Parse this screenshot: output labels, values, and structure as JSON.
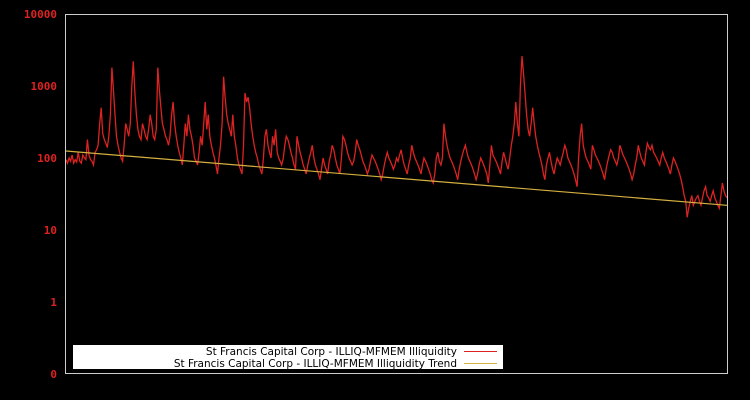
{
  "chart_data": {
    "type": "line",
    "title": "",
    "xlabel": "",
    "ylabel": "",
    "yscale": "log",
    "ylim": [
      0,
      10000
    ],
    "y_ticks": [
      "10000",
      "1000",
      "100",
      "10",
      "1",
      "0"
    ],
    "x_ticks": [],
    "grid": false,
    "legend_position": "lower-left",
    "colors": {
      "background": "#000000",
      "frame": "#cccccc",
      "tick_label": "#dd2222",
      "series": "#dd2222",
      "trend": "#d4b040"
    },
    "series": [
      {
        "name": "St Francis Capital Corp - ILLIQ-MFMEM Illiquidity",
        "color": "#dd2222",
        "values": [
          95,
          85,
          100,
          90,
          110,
          85,
          95,
          88,
          120,
          90,
          85,
          110,
          100,
          95,
          180,
          110,
          95,
          90,
          80,
          120,
          130,
          150,
          300,
          500,
          220,
          180,
          160,
          140,
          200,
          400,
          1800,
          900,
          400,
          200,
          150,
          120,
          100,
          90,
          150,
          300,
          250,
          200,
          300,
          1000,
          2200,
          800,
          400,
          250,
          200,
          180,
          300,
          250,
          200,
          180,
          250,
          400,
          300,
          200,
          180,
          250,
          1800,
          900,
          500,
          300,
          250,
          200,
          180,
          150,
          200,
          400,
          600,
          300,
          200,
          150,
          120,
          100,
          80,
          150,
          300,
          200,
          400,
          250,
          200,
          150,
          100,
          90,
          80,
          120,
          200,
          150,
          300,
          600,
          250,
          400,
          200,
          150,
          120,
          100,
          80,
          60,
          100,
          150,
          300,
          1350,
          700,
          400,
          300,
          250,
          200,
          400,
          200,
          150,
          100,
          80,
          70,
          60,
          150,
          800,
          600,
          700,
          500,
          300,
          200,
          150,
          120,
          100,
          80,
          70,
          60,
          100,
          200,
          250,
          150,
          120,
          100,
          200,
          150,
          250,
          120,
          100,
          90,
          80,
          100,
          150,
          200,
          180,
          150,
          120,
          100,
          80,
          70,
          200,
          150,
          120,
          100,
          80,
          70,
          60,
          80,
          100,
          120,
          150,
          100,
          80,
          70,
          60,
          50,
          70,
          100,
          80,
          70,
          60,
          90,
          110,
          150,
          130,
          100,
          80,
          70,
          60,
          100,
          200,
          180,
          150,
          120,
          100,
          90,
          80,
          90,
          120,
          180,
          150,
          130,
          110,
          90,
          80,
          70,
          60,
          70,
          90,
          110,
          100,
          90,
          80,
          70,
          60,
          50,
          60,
          80,
          100,
          120,
          100,
          90,
          80,
          70,
          80,
          100,
          90,
          110,
          130,
          100,
          80,
          70,
          60,
          80,
          100,
          150,
          120,
          100,
          90,
          80,
          70,
          60,
          80,
          100,
          90,
          80,
          70,
          60,
          50,
          45,
          60,
          100,
          120,
          90,
          80,
          100,
          300,
          200,
          150,
          120,
          100,
          90,
          80,
          70,
          60,
          50,
          70,
          90,
          110,
          130,
          150,
          120,
          100,
          90,
          80,
          70,
          60,
          50,
          60,
          80,
          100,
          90,
          80,
          70,
          60,
          45,
          80,
          150,
          110,
          100,
          90,
          80,
          70,
          60,
          90,
          120,
          100,
          80,
          70,
          100,
          150,
          200,
          300,
          600,
          300,
          200,
          1000,
          2600,
          1500,
          800,
          400,
          250,
          200,
          300,
          500,
          300,
          200,
          150,
          120,
          100,
          80,
          60,
          50,
          80,
          100,
          120,
          90,
          70,
          60,
          80,
          100,
          90,
          80,
          100,
          120,
          150,
          130,
          100,
          90,
          80,
          70,
          60,
          50,
          40,
          100,
          200,
          300,
          150,
          120,
          100,
          90,
          80,
          70,
          150,
          130,
          110,
          100,
          90,
          80,
          70,
          60,
          50,
          70,
          90,
          110,
          130,
          120,
          100,
          90,
          80,
          100,
          150,
          130,
          110,
          100,
          90,
          80,
          70,
          60,
          50,
          60,
          80,
          100,
          150,
          120,
          100,
          90,
          80,
          120,
          160,
          140,
          130,
          150,
          120,
          110,
          100,
          90,
          80,
          100,
          120,
          100,
          90,
          80,
          70,
          60,
          80,
          100,
          90,
          80,
          70,
          60,
          50,
          40,
          30,
          25,
          15,
          20,
          25,
          30,
          22,
          25,
          28,
          30,
          25,
          22,
          28,
          35,
          40,
          30,
          28,
          25,
          30,
          35,
          28,
          25,
          22,
          20,
          30,
          45,
          35,
          30,
          28
        ],
        "estimated": true
      },
      {
        "name": "St Francis Capital Corp - ILLIQ-MFMEM Illiquidity Trend",
        "color": "#d4b040",
        "start": 125,
        "end": 22
      }
    ],
    "annotations": []
  },
  "legend": {
    "items": [
      {
        "label": "St Francis Capital Corp - ILLIQ-MFMEM Illiquidity",
        "color": "#dd2222"
      },
      {
        "label": "St Francis Capital Corp - ILLIQ-MFMEM Illiquidity Trend",
        "color": "#d4b040"
      }
    ]
  }
}
